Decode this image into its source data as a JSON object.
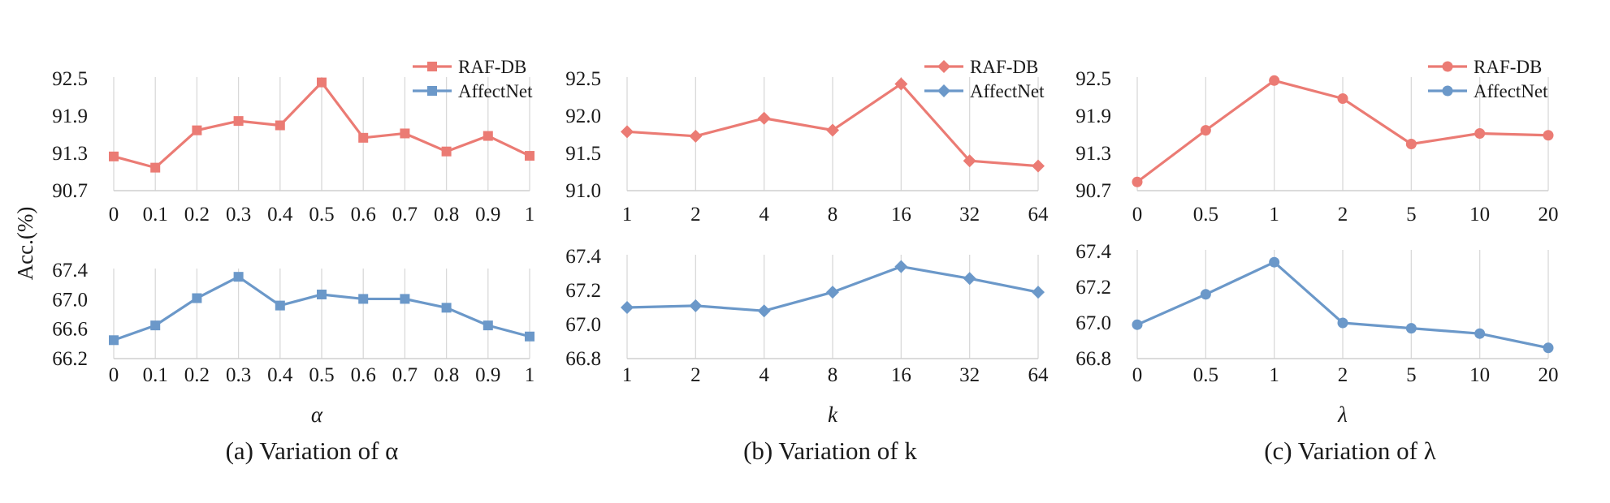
{
  "figure": {
    "ylabel": "Acc.(%)"
  },
  "chart_data": [
    {
      "type": "line",
      "panel": "a",
      "caption": "(a) Variation of α",
      "xlabel": "α",
      "ylabel": "Acc.(%)",
      "categories": [
        "0",
        "0.1",
        "0.2",
        "0.3",
        "0.4",
        "0.5",
        "0.6",
        "0.7",
        "0.8",
        "0.9",
        "1"
      ],
      "marker": "square",
      "series": [
        {
          "name": "RAF-DB",
          "color": "#eb7b74",
          "values": [
            91.25,
            91.07,
            91.67,
            91.82,
            91.75,
            92.44,
            91.55,
            91.62,
            91.33,
            91.58,
            91.26
          ],
          "ylim": [
            90.7,
            92.5
          ],
          "yticks": [
            "90.7",
            "91.3",
            "91.9",
            "92.5"
          ]
        },
        {
          "name": "AffectNet",
          "color": "#6b98c9",
          "values": [
            66.45,
            66.65,
            67.02,
            67.31,
            66.92,
            67.07,
            67.01,
            67.01,
            66.89,
            66.65,
            66.5
          ],
          "ylim": [
            66.2,
            67.4
          ],
          "yticks": [
            "66.2",
            "66.6",
            "67.0",
            "67.4"
          ]
        }
      ],
      "legend": "top-right",
      "grid": "vertical"
    },
    {
      "type": "line",
      "panel": "b",
      "caption": "(b) Variation of k",
      "xlabel": "k",
      "categories": [
        "1",
        "2",
        "4",
        "8",
        "16",
        "32",
        "64"
      ],
      "marker": "diamond",
      "series": [
        {
          "name": "RAF-DB",
          "color": "#eb7b74",
          "values": [
            91.79,
            91.73,
            91.97,
            91.81,
            92.43,
            91.4,
            91.33
          ],
          "ylim": [
            91.0,
            92.5
          ],
          "yticks": [
            "91.0",
            "91.5",
            "92.0",
            "92.5"
          ]
        },
        {
          "name": "AffectNet",
          "color": "#6b98c9",
          "values": [
            67.1,
            67.11,
            67.08,
            67.19,
            67.34,
            67.27,
            67.19
          ],
          "ylim": [
            66.8,
            67.4
          ],
          "yticks": [
            "66.8",
            "67.0",
            "67.2",
            "67.4"
          ]
        }
      ],
      "legend": "top-right",
      "grid": "vertical"
    },
    {
      "type": "line",
      "panel": "c",
      "caption": "(c) Variation of λ",
      "xlabel": "λ",
      "categories": [
        "0",
        "0.5",
        "1",
        "2",
        "5",
        "10",
        "20"
      ],
      "marker": "circle",
      "series": [
        {
          "name": "RAF-DB",
          "color": "#eb7b74",
          "values": [
            90.84,
            91.67,
            92.47,
            92.18,
            91.45,
            91.62,
            91.59
          ],
          "ylim": [
            90.7,
            92.5
          ],
          "yticks": [
            "90.7",
            "91.3",
            "91.9",
            "92.5"
          ]
        },
        {
          "name": "AffectNet",
          "color": "#6b98c9",
          "values": [
            66.99,
            67.16,
            67.34,
            67.0,
            66.97,
            66.94,
            66.86
          ],
          "ylim": [
            66.8,
            67.4
          ],
          "yticks": [
            "66.8",
            "67.0",
            "67.2",
            "67.4"
          ]
        }
      ],
      "legend": "top-right",
      "grid": "vertical"
    }
  ]
}
